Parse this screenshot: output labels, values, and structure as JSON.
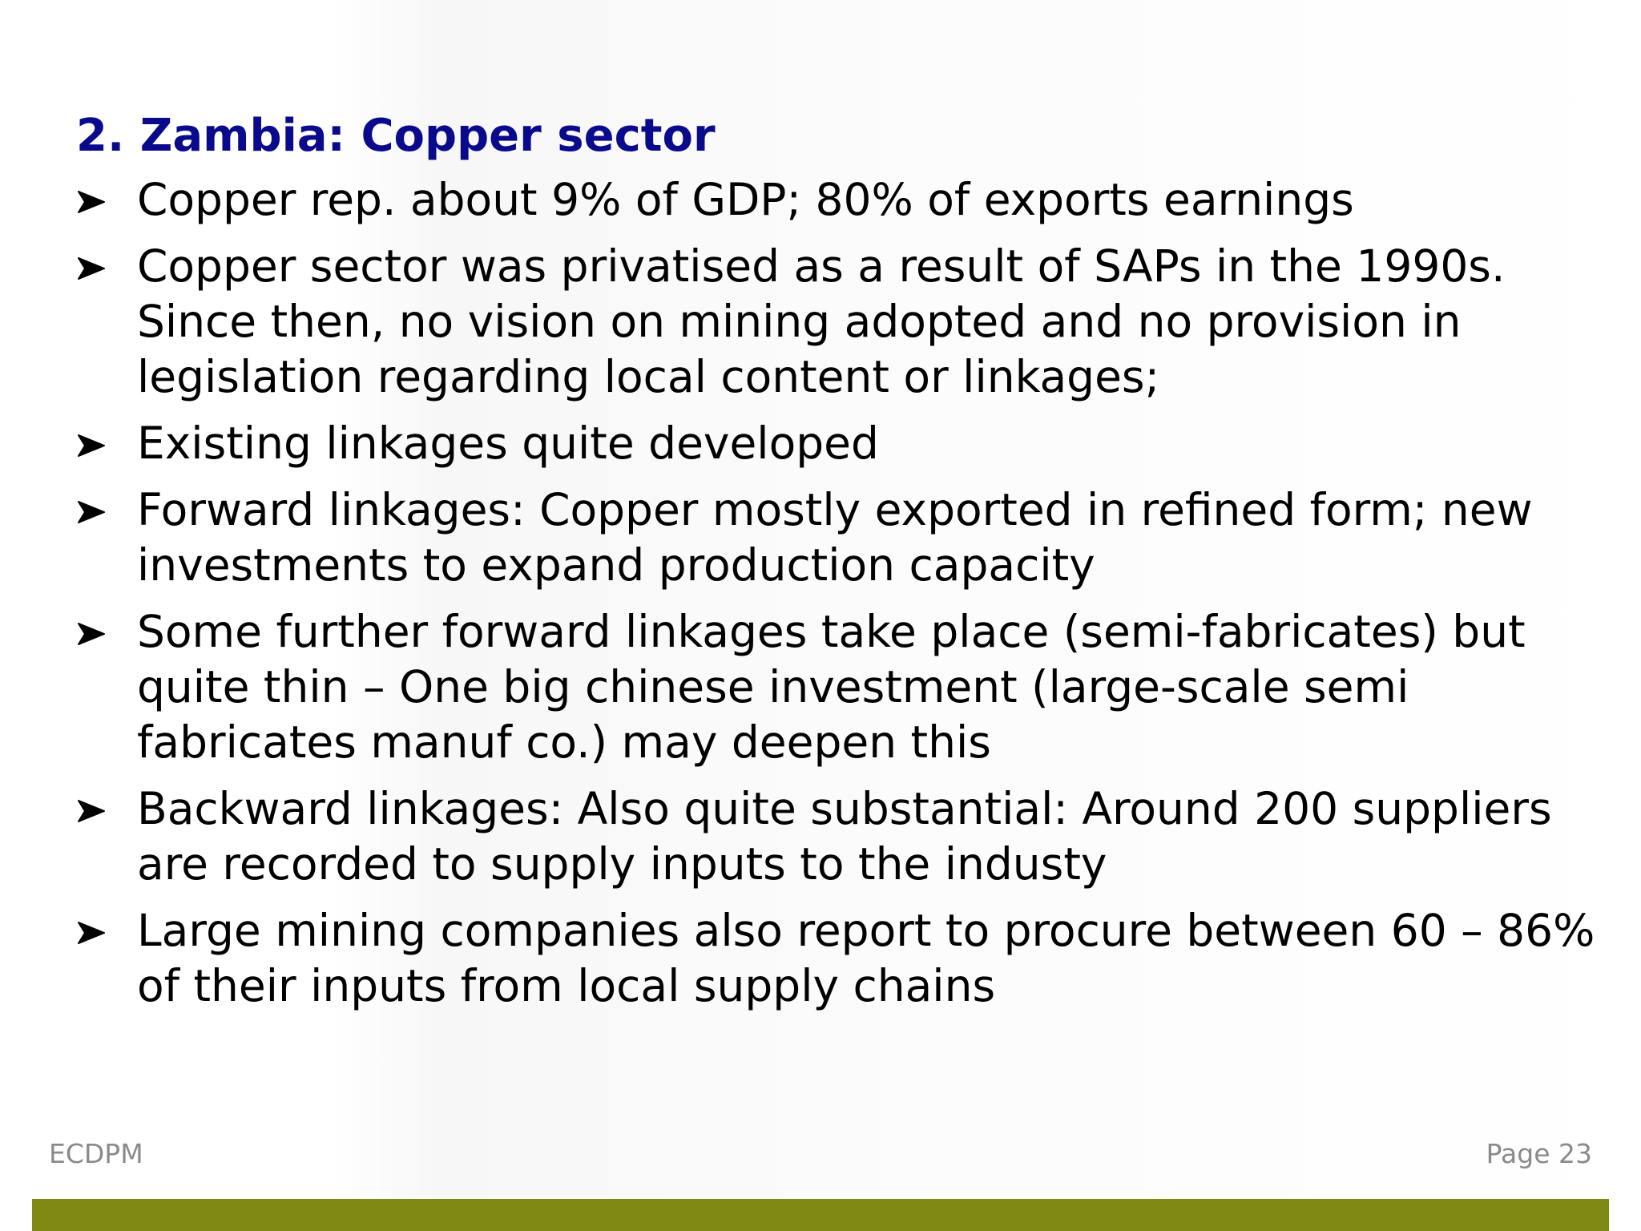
{
  "slide": {
    "title": "2. Zambia: Copper sector",
    "bullet_icon": "arrowhead-bullet-icon",
    "bullets": [
      "Copper rep. about 9% of GDP; 80% of exports earnings",
      "Copper sector was privatised as a result of SAPs in the 1990s. Since then, no vision on mining adopted and no provision in legislation regarding local content or linkages;",
      "Existing linkages quite developed",
      "Forward linkages: Copper mostly exported in refined form; new investments to expand production capacity",
      "Some further forward linkages take place (semi-fabricates) but quite thin – One big chinese investment (large-scale semi fabricates manuf co.) may deepen this",
      "Backward linkages: Also quite substantial: Around 200 suppliers are recorded to supply inputs to the industy",
      "Large mining companies also report to procure between 60 – 86% of their inputs from local supply chains"
    ]
  },
  "footer": {
    "organization": "ECDPM",
    "page_label": "Page 23"
  },
  "colors": {
    "title": "#0a0a8c",
    "body_text": "#000000",
    "footer_text": "#8a8a8a",
    "bottom_bar": "#7f8a15"
  }
}
